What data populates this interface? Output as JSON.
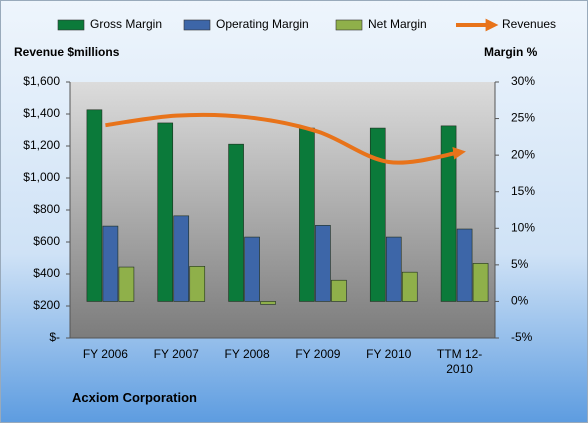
{
  "chart_data": {
    "type": "bar",
    "categories": [
      "FY 2006",
      "FY 2007",
      "FY 2008",
      "FY 2009",
      "FY 2010",
      "TTM 12-2010"
    ],
    "y_axis_label": "Revenue $millions",
    "y2_axis_label": "Margin %",
    "footer": "Acxiom Corporation",
    "ylim": [
      0,
      1600
    ],
    "yticks": [
      {
        "value": 0,
        "label": "$-"
      },
      {
        "value": 200,
        "label": "$200"
      },
      {
        "value": 400,
        "label": "$400"
      },
      {
        "value": 600,
        "label": "$600"
      },
      {
        "value": 800,
        "label": "$800"
      },
      {
        "value": 1000,
        "label": "$1,000"
      },
      {
        "value": 1200,
        "label": "$1,200"
      },
      {
        "value": 1400,
        "label": "$1,400"
      },
      {
        "value": 1600,
        "label": "$1,600"
      }
    ],
    "y2lim": [
      -5,
      30
    ],
    "y2ticks": [
      {
        "value": -5,
        "label": "-5%"
      },
      {
        "value": 0,
        "label": "0%"
      },
      {
        "value": 5,
        "label": "5%"
      },
      {
        "value": 10,
        "label": "10%"
      },
      {
        "value": 15,
        "label": "15%"
      },
      {
        "value": 20,
        "label": "20%"
      },
      {
        "value": 25,
        "label": "25%"
      },
      {
        "value": 30,
        "label": "30%"
      }
    ],
    "legend": "top",
    "series": [
      {
        "name": "Gross Margin",
        "type": "bar",
        "axis": "y2",
        "color": "#0b7a3a",
        "values": [
          26.2,
          24.4,
          21.5,
          23.7,
          23.7,
          24.0
        ]
      },
      {
        "name": "Operating Margin",
        "type": "bar",
        "axis": "y2",
        "color": "#3d66a8",
        "values": [
          10.3,
          11.7,
          8.8,
          10.4,
          8.8,
          9.9
        ]
      },
      {
        "name": "Net Margin",
        "type": "bar",
        "axis": "y2",
        "color": "#8fb04a",
        "values": [
          4.7,
          4.8,
          -0.4,
          2.9,
          4.0,
          5.2
        ]
      },
      {
        "name": "Revenues",
        "type": "line",
        "color": "#e8731a",
        "values": [
          1330,
          1390,
          1380,
          1290,
          1100,
          1160
        ]
      }
    ]
  }
}
